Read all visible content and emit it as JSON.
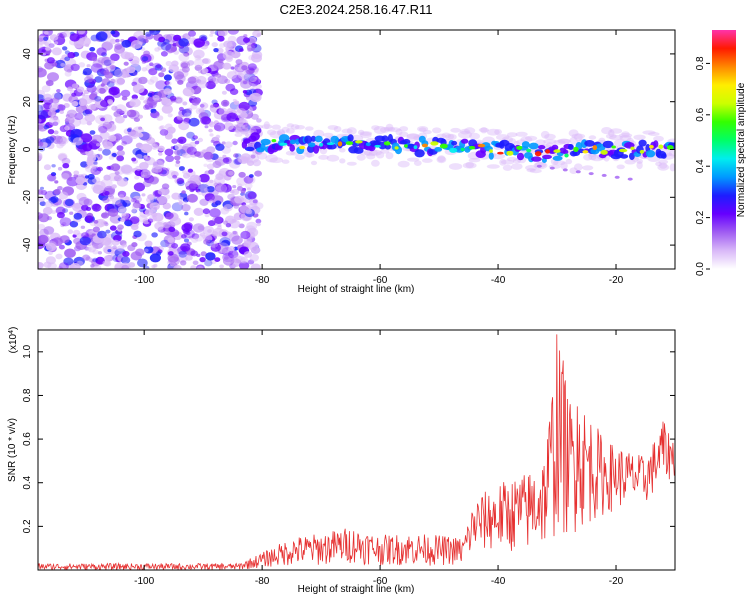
{
  "chart_data": [
    {
      "type": "heatmap",
      "title": "C2E3.2024.258.16.47.R11",
      "xlabel": "Height of straight line (km)",
      "ylabel": "Frequency (Hz)",
      "xlim": [
        -118,
        -10
      ],
      "ylim": [
        -50,
        50
      ],
      "xticks": [
        -100,
        -80,
        -60,
        -40,
        -20
      ],
      "yticks": [
        -40,
        -20,
        0,
        20,
        40
      ],
      "grid": false,
      "signal_band_center_hz": [
        {
          "x": -82,
          "y": 3
        },
        {
          "x": -70,
          "y": 2
        },
        {
          "x": -60,
          "y": 2
        },
        {
          "x": -50,
          "y": 1
        },
        {
          "x": -40,
          "y": 0
        },
        {
          "x": -30,
          "y": -2
        },
        {
          "x": -25,
          "y": 0
        },
        {
          "x": -12,
          "y": 0
        }
      ],
      "noise_region_x": [
        -118,
        -82
      ],
      "colorbar": {
        "label": "Normalized spectral amplitude",
        "range": [
          0,
          0.93
        ],
        "ticks": [
          0.0,
          0.2,
          0.4,
          0.6,
          0.8
        ],
        "tick_labels": [
          "0.0",
          "0.2",
          "0.4",
          "0.6",
          "0.8"
        ],
        "colors": [
          "#ffffff",
          "#d9b8f8",
          "#a05df2",
          "#6600ff",
          "#1d1dff",
          "#0099ff",
          "#00eeee",
          "#00ff66",
          "#33ff00",
          "#ccff00",
          "#ffee00",
          "#ff8800",
          "#ff1a00",
          "#ff33aa"
        ]
      }
    },
    {
      "type": "line",
      "xlabel": "Height of straight line (km)",
      "ylabel": "SNR (10 * v/v)",
      "scale_label": "(x10",
      "scale_exponent": "4",
      "scale_suffix": ")",
      "xlim": [
        -118,
        -10
      ],
      "ylim": [
        0,
        1.1
      ],
      "xticks": [
        -100,
        -80,
        -60,
        -40,
        -20
      ],
      "yticks": [
        0.2,
        0.4,
        0.6,
        0.8,
        1.0
      ],
      "ytick_labels": [
        "0.2",
        "0.4",
        "0.6",
        "0.8",
        "1.0"
      ],
      "grid": false,
      "series": [
        {
          "color": "#e63030",
          "envelope": [
            {
              "x": -118,
              "lo": 0.0,
              "hi": 0.03
            },
            {
              "x": -84,
              "lo": 0.0,
              "hi": 0.03
            },
            {
              "x": -80,
              "lo": 0.01,
              "hi": 0.08
            },
            {
              "x": -75,
              "lo": 0.02,
              "hi": 0.15
            },
            {
              "x": -70,
              "lo": 0.02,
              "hi": 0.17
            },
            {
              "x": -65,
              "lo": 0.03,
              "hi": 0.2
            },
            {
              "x": -60,
              "lo": 0.02,
              "hi": 0.16
            },
            {
              "x": -55,
              "lo": 0.02,
              "hi": 0.17
            },
            {
              "x": -50,
              "lo": 0.02,
              "hi": 0.16
            },
            {
              "x": -46,
              "lo": 0.02,
              "hi": 0.15
            },
            {
              "x": -44,
              "lo": 0.08,
              "hi": 0.33
            },
            {
              "x": -40,
              "lo": 0.08,
              "hi": 0.4
            },
            {
              "x": -35,
              "lo": 0.08,
              "hi": 0.45
            },
            {
              "x": -32,
              "lo": 0.1,
              "hi": 0.55
            },
            {
              "x": -30,
              "lo": 0.15,
              "hi": 1.08
            },
            {
              "x": -28,
              "lo": 0.15,
              "hi": 0.8
            },
            {
              "x": -25,
              "lo": 0.2,
              "hi": 0.75
            },
            {
              "x": -22,
              "lo": 0.25,
              "hi": 0.6
            },
            {
              "x": -18,
              "lo": 0.3,
              "hi": 0.55
            },
            {
              "x": -15,
              "lo": 0.3,
              "hi": 0.52
            },
            {
              "x": -12,
              "lo": 0.4,
              "hi": 0.68
            },
            {
              "x": -10,
              "lo": 0.42,
              "hi": 0.6
            }
          ],
          "peaks": [
            {
              "x": -30,
              "y": 1.08
            },
            {
              "x": -29,
              "y": 0.96
            },
            {
              "x": -26.5,
              "y": 0.75
            },
            {
              "x": -12,
              "y": 0.68
            }
          ]
        }
      ]
    }
  ]
}
